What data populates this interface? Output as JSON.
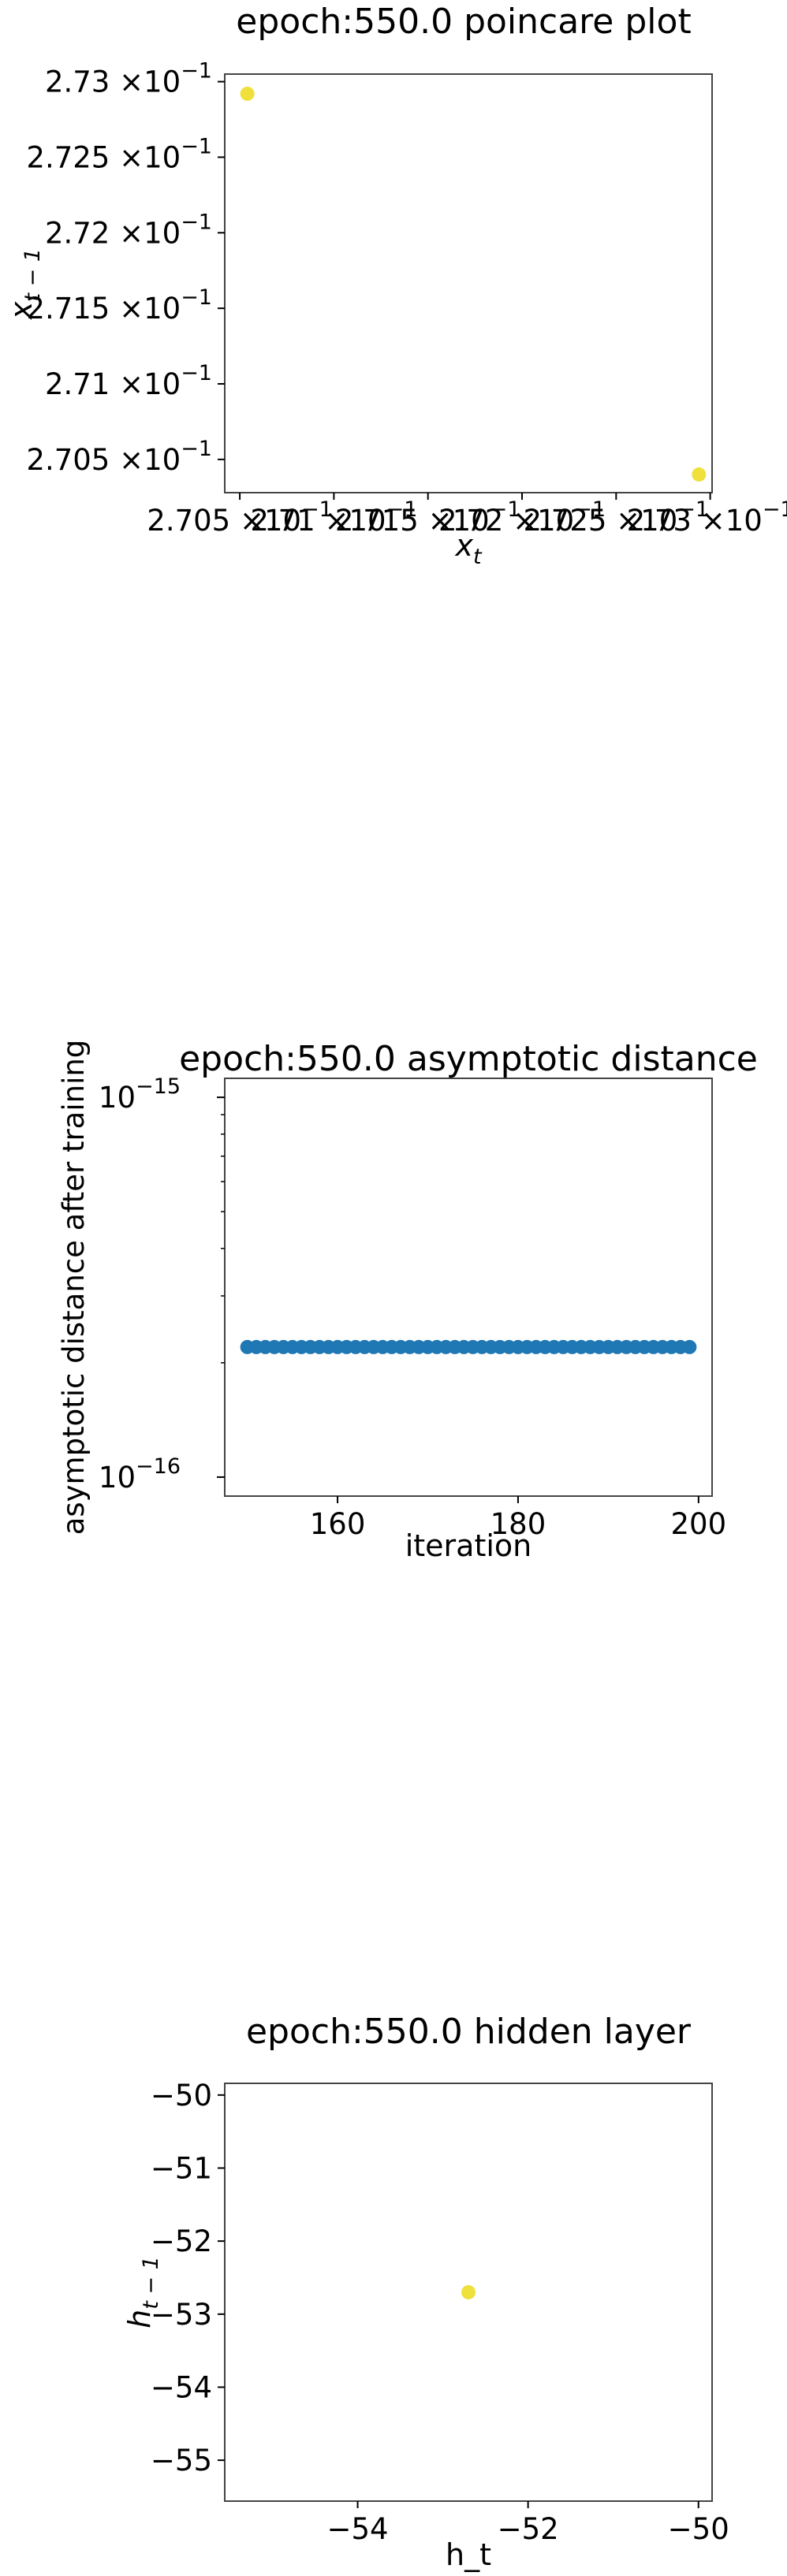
{
  "charts": [
    {
      "type": "scatter",
      "title": "epoch:550.0 poincare plot",
      "xlabel": {
        "base": "x",
        "sub": "t"
      },
      "ylabel": {
        "base": "x",
        "sub": "t − 1"
      },
      "xlim": [
        0.27042,
        0.27301
      ],
      "ylim": [
        0.27028,
        0.27305
      ],
      "xticks": [
        {
          "value": 0.2705,
          "label": "2.705",
          "times": "×10",
          "exp": "−1"
        },
        {
          "value": 0.271,
          "label": "2.71",
          "times": "×10",
          "exp": "−1"
        },
        {
          "value": 0.2715,
          "label": "2.715",
          "times": "×10",
          "exp": "−1"
        },
        {
          "value": 0.272,
          "label": "2.72",
          "times": "×10",
          "exp": "−1"
        },
        {
          "value": 0.2725,
          "label": "2.725",
          "times": "×10",
          "exp": "−1"
        },
        {
          "value": 0.273,
          "label": "2.73",
          "times": "×10",
          "exp": "−1"
        }
      ],
      "yticks": [
        {
          "value": 0.2705,
          "label": "2.705",
          "times": "×10",
          "exp": "−1"
        },
        {
          "value": 0.271,
          "label": "2.71",
          "times": "×10",
          "exp": "−1"
        },
        {
          "value": 0.2715,
          "label": "2.715",
          "times": "×10",
          "exp": "−1"
        },
        {
          "value": 0.272,
          "label": "2.72",
          "times": "×10",
          "exp": "−1"
        },
        {
          "value": 0.2725,
          "label": "2.725",
          "times": "×10",
          "exp": "−1"
        },
        {
          "value": 0.273,
          "label": "2.73",
          "times": "×10",
          "exp": "−1"
        }
      ],
      "points": [
        {
          "x": 0.27054,
          "y": 0.27292
        },
        {
          "x": 0.27294,
          "y": 0.2704
        }
      ],
      "color": "#f0e03c"
    },
    {
      "type": "scatter",
      "title": "epoch:550.0 asymptotic distance",
      "xlabel": "iteration",
      "ylabel": "asymptotic distance after training",
      "xlim": [
        147.5,
        201.5
      ],
      "ylim_log10": [
        -16.05,
        -14.95
      ],
      "yscale": "log",
      "xticks": [
        {
          "value": 160,
          "label": "160"
        },
        {
          "value": 180,
          "label": "180"
        },
        {
          "value": 200,
          "label": "200"
        }
      ],
      "yticks": [
        {
          "value": -16,
          "base": "10",
          "exp": "−16"
        },
        {
          "value": -15,
          "base": "10",
          "exp": "−15"
        }
      ],
      "x_start": 150,
      "x_end": 199,
      "y_value": 2.2e-16,
      "color": "#1f77b4"
    },
    {
      "type": "scatter",
      "title": "epoch:550.0 hidden layer",
      "xlabel": "h_t",
      "ylabel": {
        "base": "h",
        "sub": "t − 1"
      },
      "xlim": [
        -55.56,
        -49.84
      ],
      "ylim": [
        -55.56,
        -49.84
      ],
      "xticks": [
        {
          "value": -54,
          "label": "−54"
        },
        {
          "value": -52,
          "label": "−52"
        },
        {
          "value": -50,
          "label": "−50"
        }
      ],
      "yticks": [
        {
          "value": -55,
          "label": "−55"
        },
        {
          "value": -54,
          "label": "−54"
        },
        {
          "value": -53,
          "label": "−53"
        },
        {
          "value": -52,
          "label": "−52"
        },
        {
          "value": -51,
          "label": "−51"
        },
        {
          "value": -50,
          "label": "−50"
        }
      ],
      "points": [
        {
          "x": -52.7,
          "y": -52.7
        }
      ],
      "color": "#f0e03c"
    }
  ]
}
